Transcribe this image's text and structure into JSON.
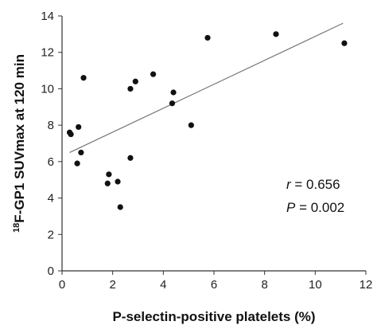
{
  "chart_data": {
    "type": "scatter",
    "title": "",
    "xlabel": "P-selectin-positive platelets (%)",
    "ylabel_sup": "18",
    "ylabel_main": "F-GP1 SUVmax at 120 min",
    "xlim": [
      0,
      12
    ],
    "ylim": [
      0,
      14
    ],
    "xticks": [
      "0",
      "2",
      "4",
      "6",
      "8",
      "10",
      "12"
    ],
    "yticks": [
      "0",
      "2",
      "4",
      "6",
      "8",
      "10",
      "12",
      "14"
    ],
    "grid": false,
    "points": [
      {
        "x": 0.3,
        "y": 7.6
      },
      {
        "x": 0.35,
        "y": 7.5
      },
      {
        "x": 0.6,
        "y": 5.9
      },
      {
        "x": 0.65,
        "y": 7.9
      },
      {
        "x": 0.75,
        "y": 6.5
      },
      {
        "x": 0.85,
        "y": 10.6
      },
      {
        "x": 1.85,
        "y": 5.3
      },
      {
        "x": 1.8,
        "y": 4.8
      },
      {
        "x": 2.2,
        "y": 4.9
      },
      {
        "x": 2.3,
        "y": 3.5
      },
      {
        "x": 2.7,
        "y": 10.0
      },
      {
        "x": 2.7,
        "y": 6.2
      },
      {
        "x": 2.9,
        "y": 10.4
      },
      {
        "x": 3.6,
        "y": 10.8
      },
      {
        "x": 4.4,
        "y": 9.8
      },
      {
        "x": 4.35,
        "y": 9.2
      },
      {
        "x": 5.1,
        "y": 8.0
      },
      {
        "x": 5.75,
        "y": 12.8
      },
      {
        "x": 8.45,
        "y": 13.0
      },
      {
        "x": 11.15,
        "y": 12.5
      }
    ],
    "trendline": {
      "x1": 0.3,
      "y1": 6.5,
      "x2": 11.1,
      "y2": 13.6
    },
    "annotation": {
      "r_symbol": "r",
      "r_text": " = 0.656",
      "p_symbol": "P",
      "p_text": " = 0.002"
    },
    "colors": {
      "marker": "#111111",
      "trendline": "#777777",
      "axis": "#333333"
    }
  }
}
